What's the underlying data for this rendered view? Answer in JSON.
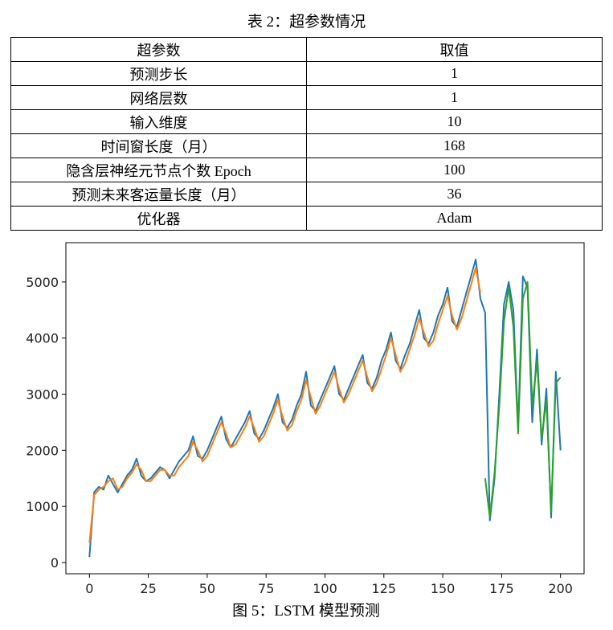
{
  "table": {
    "caption": "表 2：超参数情况",
    "header": [
      "超参数",
      "取值"
    ],
    "rows": [
      [
        "预测步长",
        1
      ],
      [
        "网络层数",
        1
      ],
      [
        "输入维度",
        10
      ],
      [
        "时间窗长度（月）",
        168
      ],
      [
        "隐含层神经元节点个数 Epoch",
        100
      ],
      [
        "预测未来客运量长度（月）",
        36
      ],
      [
        "优化器",
        "Adam"
      ]
    ]
  },
  "chart_data": {
    "type": "line",
    "caption": "图 5：LSTM 模型预测",
    "xlim": [
      -10,
      210
    ],
    "ylim": [
      -200,
      5700
    ],
    "xticks": [
      0,
      25,
      50,
      75,
      100,
      125,
      150,
      175,
      200
    ],
    "yticks": [
      0,
      1000,
      2000,
      3000,
      4000,
      5000
    ],
    "series": [
      {
        "color": "#1f77b4",
        "x": [
          0,
          2,
          4,
          6,
          8,
          10,
          12,
          14,
          16,
          18,
          20,
          22,
          24,
          26,
          28,
          30,
          32,
          34,
          36,
          38,
          40,
          42,
          44,
          46,
          48,
          50,
          52,
          54,
          56,
          58,
          60,
          62,
          64,
          66,
          68,
          70,
          72,
          74,
          76,
          78,
          80,
          82,
          84,
          86,
          88,
          90,
          92,
          94,
          96,
          98,
          100,
          102,
          104,
          106,
          108,
          110,
          112,
          114,
          116,
          118,
          120,
          122,
          124,
          126,
          128,
          130,
          132,
          134,
          136,
          138,
          140,
          142,
          144,
          146,
          148,
          150,
          152,
          154,
          156,
          158,
          160,
          162,
          164,
          166,
          168,
          170,
          172,
          174,
          176,
          178,
          180,
          182,
          184,
          186,
          188,
          190,
          192,
          194,
          196,
          198,
          200
        ],
        "values": [
          100,
          1250,
          1350,
          1300,
          1550,
          1400,
          1250,
          1400,
          1550,
          1650,
          1850,
          1550,
          1450,
          1500,
          1600,
          1700,
          1650,
          1500,
          1650,
          1800,
          1900,
          2000,
          2250,
          1900,
          1850,
          2000,
          2200,
          2400,
          2600,
          2200,
          2050,
          2200,
          2350,
          2500,
          2700,
          2300,
          2200,
          2350,
          2550,
          2750,
          3000,
          2500,
          2400,
          2550,
          2800,
          3000,
          3400,
          2800,
          2700,
          2900,
          3100,
          3300,
          3500,
          3000,
          2900,
          3100,
          3300,
          3500,
          3700,
          3200,
          3100,
          3300,
          3600,
          3800,
          4100,
          3600,
          3450,
          3700,
          3900,
          4200,
          4500,
          4000,
          3900,
          4100,
          4400,
          4600,
          4900,
          4300,
          4200,
          4500,
          4800,
          5100,
          5400,
          4700,
          4450,
          750,
          1500,
          3000,
          4600,
          5000,
          4500,
          2400,
          5100,
          4900,
          2500,
          3800,
          2100,
          3100,
          800,
          3400,
          2000
        ]
      },
      {
        "color": "#ff7f0e",
        "x": [
          0,
          2,
          4,
          6,
          8,
          10,
          12,
          14,
          16,
          18,
          20,
          22,
          24,
          26,
          28,
          30,
          32,
          34,
          36,
          38,
          40,
          42,
          44,
          46,
          48,
          50,
          52,
          54,
          56,
          58,
          60,
          62,
          64,
          66,
          68,
          70,
          72,
          74,
          76,
          78,
          80,
          82,
          84,
          86,
          88,
          90,
          92,
          94,
          96,
          98,
          100,
          102,
          104,
          106,
          108,
          110,
          112,
          114,
          116,
          118,
          120,
          122,
          124,
          126,
          128,
          130,
          132,
          134,
          136,
          138,
          140,
          142,
          144,
          146,
          148,
          150,
          152,
          154,
          156,
          158,
          160,
          162,
          164,
          166
        ],
        "values": [
          350,
          1200,
          1300,
          1350,
          1450,
          1500,
          1300,
          1350,
          1500,
          1600,
          1750,
          1650,
          1450,
          1450,
          1550,
          1650,
          1650,
          1550,
          1550,
          1700,
          1800,
          1900,
          2150,
          2000,
          1800,
          1900,
          2100,
          2300,
          2500,
          2300,
          2050,
          2100,
          2250,
          2400,
          2600,
          2400,
          2150,
          2250,
          2450,
          2650,
          2900,
          2600,
          2350,
          2450,
          2700,
          2900,
          3250,
          2950,
          2650,
          2800,
          3000,
          3200,
          3400,
          3100,
          2850,
          3000,
          3200,
          3400,
          3600,
          3300,
          3050,
          3200,
          3450,
          3700,
          4000,
          3700,
          3400,
          3550,
          3800,
          4050,
          4350,
          4100,
          3850,
          3950,
          4250,
          4500,
          4750,
          4400,
          4150,
          4350,
          4650,
          4950,
          5250,
          4800
        ]
      },
      {
        "color": "#2ca02c",
        "x": [
          168,
          170,
          172,
          174,
          176,
          178,
          180,
          182,
          184,
          186,
          188,
          190,
          192,
          194,
          196,
          198,
          200
        ],
        "values": [
          1500,
          800,
          1600,
          2800,
          4300,
          4900,
          4200,
          2300,
          4700,
          5000,
          2800,
          3600,
          2200,
          2900,
          900,
          3200,
          3300
        ]
      }
    ]
  }
}
